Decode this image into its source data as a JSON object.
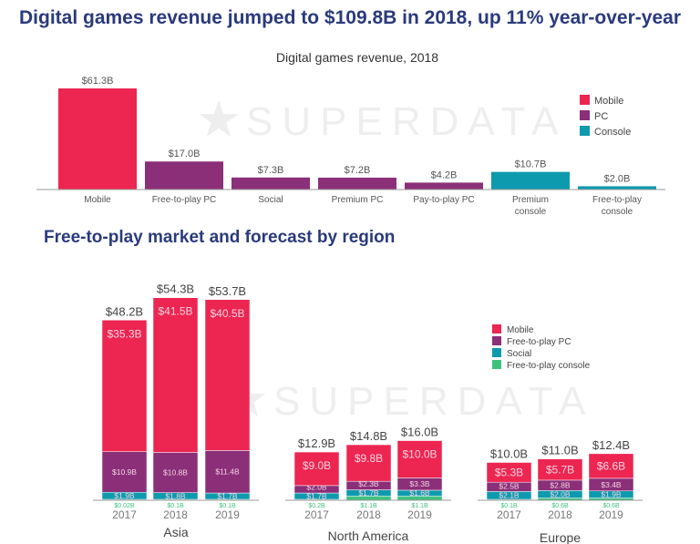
{
  "headline": "Digital games revenue jumped to $109.8B in 2018, up 11% year-over-year",
  "section2_title": "Free-to-play market and forecast by region",
  "watermark": "SUPERDATA",
  "colors": {
    "Mobile": "#ec2551",
    "PC": "#8b2f79",
    "Console": "#0e9aae",
    "Social": "#0e9aae",
    "Free-to-play PC": "#8b2f79",
    "Free-to-play console": "#3fc17e"
  },
  "chart_data": [
    {
      "type": "bar",
      "title": "Digital games revenue, 2018",
      "categories": [
        "Mobile",
        "Free-to-play PC",
        "Social",
        "Premium PC",
        "Pay-to-play PC",
        "Premium console",
        "Free-to-play console"
      ],
      "values": [
        61.3,
        17.0,
        7.3,
        7.2,
        4.2,
        10.7,
        2.0
      ],
      "labels": [
        "$61.3B",
        "$17.0B",
        "$7.3B",
        "$7.2B",
        "$4.2B",
        "$10.7B",
        "$2.0B"
      ],
      "platform": [
        "Mobile",
        "PC",
        "PC",
        "PC",
        "PC",
        "Console",
        "Console"
      ],
      "legend": [
        "Mobile",
        "PC",
        "Console"
      ],
      "legend_placement": "top-right",
      "unit": "$B"
    },
    {
      "type": "bar",
      "stacked": true,
      "groups": [
        {
          "region": "Asia",
          "years": [
            "2017",
            "2018",
            "2019"
          ],
          "totals": [
            "$48.2B",
            "$54.3B",
            "$53.7B"
          ],
          "Mobile": [
            35.3,
            41.5,
            40.5
          ],
          "Free-to-play PC": [
            10.9,
            10.8,
            11.4
          ],
          "Social": [
            1.9,
            1.8,
            1.7
          ],
          "Free-to-play console": [
            0.02,
            0.1,
            0.1
          ],
          "labels": {
            "Mobile": [
              "$35.3B",
              "$41.5B",
              "$40.5B"
            ],
            "Free-to-play PC": [
              "$10.9B",
              "$10.8B",
              "$11.4B"
            ],
            "Social": [
              "$1.9B",
              "$1.8B",
              "$1.7B"
            ],
            "Free-to-play console": [
              "$0.02B",
              "$0.1B",
              "$0.1B"
            ]
          }
        },
        {
          "region": "North America",
          "years": [
            "2017",
            "2018",
            "2019"
          ],
          "totals": [
            "$12.9B",
            "$14.8B",
            "$16.0B"
          ],
          "Mobile": [
            9.0,
            9.8,
            10.0
          ],
          "Free-to-play PC": [
            2.0,
            2.3,
            3.3
          ],
          "Social": [
            1.7,
            1.7,
            1.6
          ],
          "Free-to-play console": [
            0.2,
            1.1,
            1.1
          ],
          "labels": {
            "Mobile": [
              "$9.0B",
              "$9.8B",
              "$10.0B"
            ],
            "Free-to-play PC": [
              "$2.0B",
              "$2.3B",
              "$3.3B"
            ],
            "Social": [
              "$1.7B",
              "$1.7B",
              "$1.6B"
            ],
            "Free-to-play console": [
              "$0.2B",
              "$1.1B",
              "$1.1B"
            ]
          }
        },
        {
          "region": "Europe",
          "years": [
            "2017",
            "2018",
            "2019"
          ],
          "totals": [
            "$10.0B",
            "$11.0B",
            "$12.4B"
          ],
          "Mobile": [
            5.3,
            5.7,
            6.6
          ],
          "Free-to-play PC": [
            2.5,
            2.8,
            3.4
          ],
          "Social": [
            2.1,
            2.0,
            1.9
          ],
          "Free-to-play console": [
            0.1,
            0.6,
            0.6
          ],
          "labels": {
            "Mobile": [
              "$5.3B",
              "$5.7B",
              "$6.6B"
            ],
            "Free-to-play PC": [
              "$2.5B",
              "$2.8B",
              "$3.4B"
            ],
            "Social": [
              "$2.1B",
              "$2.0B",
              "$1.9B"
            ],
            "Free-to-play console": [
              "$0.1B",
              "$0.6B",
              "$0.6B"
            ]
          }
        }
      ],
      "legend": [
        "Mobile",
        "Free-to-play PC",
        "Social",
        "Free-to-play console"
      ],
      "legend_placement": "top-right",
      "unit": "$B"
    }
  ]
}
